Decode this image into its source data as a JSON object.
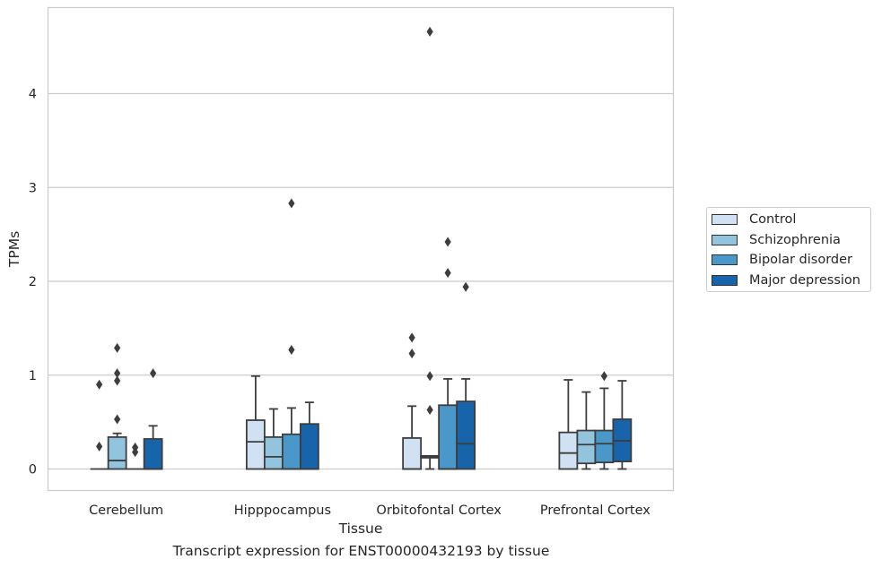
{
  "chart_data": {
    "type": "box",
    "title": "",
    "caption": "Transcript expression for ENST00000432193 by tissue",
    "xlabel": "Tissue",
    "ylabel": "TPMs",
    "ylim": [
      -0.23,
      4.9
    ],
    "yticks": [
      0,
      1,
      2,
      3,
      4
    ],
    "grid": true,
    "legend_position": "right",
    "categories": [
      "Cerebellum",
      "Hipppocampus",
      "Orbitofontal Cortex",
      "Prefrontal Cortex"
    ],
    "series": [
      {
        "name": "Control",
        "color": "#cfe1f2",
        "boxes": [
          {
            "min": 0,
            "q1": 0,
            "median": 0,
            "q3": 0,
            "max": 0,
            "outliers": [
              0.9,
              0.24
            ]
          },
          {
            "min": 0,
            "q1": 0,
            "median": 0.29,
            "q3": 0.52,
            "max": 0.99,
            "outliers": []
          },
          {
            "min": 0,
            "q1": 0,
            "median": 0,
            "q3": 0.33,
            "max": 0.67,
            "outliers": [
              1.4,
              1.23
            ]
          },
          {
            "min": 0,
            "q1": 0,
            "median": 0.17,
            "q3": 0.39,
            "max": 0.95,
            "outliers": []
          }
        ]
      },
      {
        "name": "Schizophrenia",
        "color": "#93c4de",
        "boxes": [
          {
            "min": 0,
            "q1": 0,
            "median": 0.09,
            "q3": 0.34,
            "max": 0.38,
            "outliers": [
              1.29,
              1.02,
              0.94,
              0.53
            ]
          },
          {
            "min": 0,
            "q1": 0,
            "median": 0.13,
            "q3": 0.34,
            "max": 0.64,
            "outliers": []
          },
          {
            "min": 0,
            "q1": 0.12,
            "median": 0.13,
            "q3": 0.14,
            "max": 0.14,
            "outliers": [
              4.66,
              0.99,
              0.63
            ]
          },
          {
            "min": 0,
            "q1": 0.06,
            "median": 0.26,
            "q3": 0.41,
            "max": 0.82,
            "outliers": []
          }
        ]
      },
      {
        "name": "Bipolar disorder",
        "color": "#4a98c9",
        "boxes": [
          {
            "min": 0,
            "q1": 0,
            "median": 0,
            "q3": 0,
            "max": 0,
            "outliers": [
              0.23,
              0.18
            ]
          },
          {
            "min": 0,
            "q1": 0,
            "median": 0,
            "q3": 0.37,
            "max": 0.65,
            "outliers": [
              2.83,
              1.27
            ]
          },
          {
            "min": 0,
            "q1": 0,
            "median": 0,
            "q3": 0.68,
            "max": 0.96,
            "outliers": [
              2.42,
              2.09
            ]
          },
          {
            "min": 0,
            "q1": 0.07,
            "median": 0.27,
            "q3": 0.41,
            "max": 0.86,
            "outliers": [
              0.99
            ]
          }
        ]
      },
      {
        "name": "Major depression",
        "color": "#1764ab",
        "boxes": [
          {
            "min": 0,
            "q1": 0,
            "median": 0,
            "q3": 0.32,
            "max": 0.46,
            "outliers": [
              1.02
            ]
          },
          {
            "min": 0,
            "q1": 0,
            "median": 0,
            "q3": 0.48,
            "max": 0.71,
            "outliers": []
          },
          {
            "min": 0,
            "q1": 0,
            "median": 0.27,
            "q3": 0.72,
            "max": 0.96,
            "outliers": [
              1.94
            ]
          },
          {
            "min": 0,
            "q1": 0.08,
            "median": 0.3,
            "q3": 0.53,
            "max": 0.94,
            "outliers": []
          }
        ]
      }
    ]
  }
}
